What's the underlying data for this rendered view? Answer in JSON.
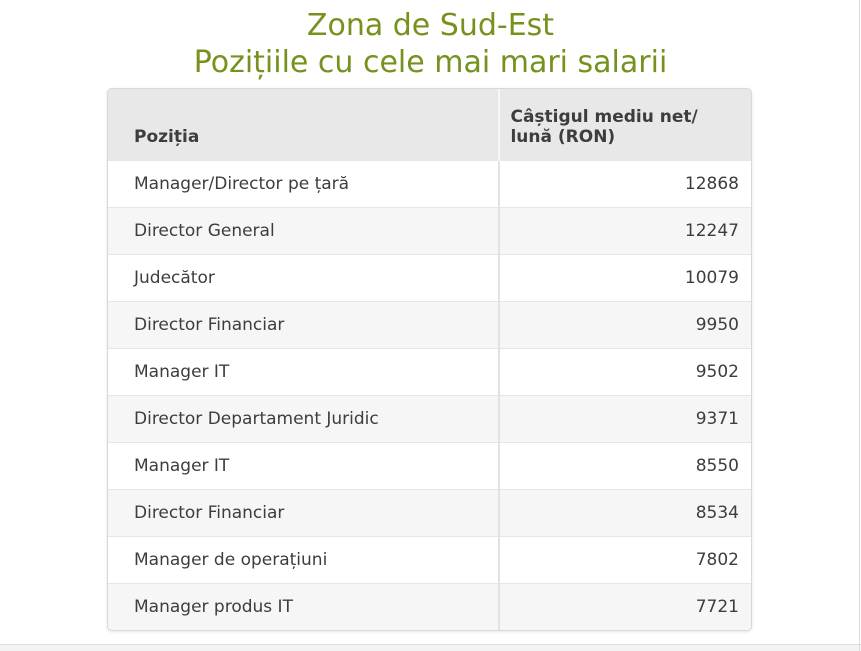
{
  "colors": {
    "title_green": "#76921e",
    "header_bg": "#e8e8e8",
    "stripe_bg": "#f6f6f6",
    "text": "#3d3d3d"
  },
  "chart_data": {
    "type": "table",
    "title": "Zona de Sud-Est",
    "subtitle": "Pozițiile cu cele mai mari salarii",
    "columns": [
      "Poziția",
      "Câștigul mediu net/ lună (RON)"
    ],
    "rows": [
      [
        "Manager/Director pe țară",
        12868
      ],
      [
        "Director General",
        12247
      ],
      [
        "Judecător",
        10079
      ],
      [
        "Director Financiar",
        9950
      ],
      [
        "Manager IT",
        9502
      ],
      [
        "Director Departament Juridic",
        9371
      ],
      [
        "Manager IT",
        8550
      ],
      [
        "Director Financiar",
        8534
      ],
      [
        "Manager de operațiuni",
        7802
      ],
      [
        "Manager produs IT",
        7721
      ]
    ]
  }
}
